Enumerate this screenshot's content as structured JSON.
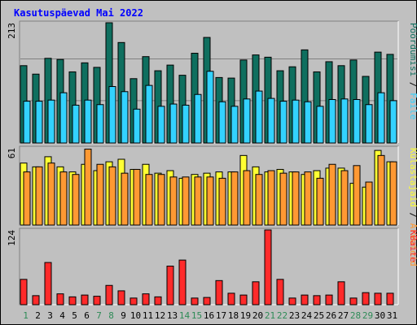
{
  "chart_data": {
    "type": "bar",
    "title": "Kasutuspäevad Mai 2022",
    "colors": {
      "background": "#c0c0c0",
      "plot_bg": "#c0c0c0",
      "grid": "#808080",
      "title": "#0000ff",
      "page_views": "#0f6f5f",
      "files": "#33d2ff",
      "hits": "#ffff33",
      "visits": "#ff9933",
      "kbytes": "#ff2a2a",
      "weekend_tick": "#2e8b57",
      "weekday_tick": "#000000"
    },
    "categories": [
      "1",
      "2",
      "3",
      "4",
      "5",
      "6",
      "7",
      "8",
      "9",
      "10",
      "11",
      "12",
      "13",
      "14",
      "15",
      "16",
      "17",
      "18",
      "19",
      "20",
      "21",
      "22",
      "23",
      "24",
      "25",
      "26",
      "27",
      "28",
      "29",
      "30",
      "31"
    ],
    "weekend_days": [
      "1",
      "7",
      "8",
      "14",
      "15",
      "21",
      "22",
      "28",
      "29"
    ],
    "panels": [
      {
        "name": "top",
        "y_max_label": "213",
        "ymax": 213,
        "side_label": [
          {
            "text": "Pöördumisi",
            "color": "#0f6f5f"
          },
          {
            "text": " / ",
            "color": "#000000"
          },
          {
            "text": "Faile",
            "color": "#33d2ff"
          }
        ],
        "series": [
          {
            "name": "Pöördumisi",
            "color": "#0f6f5f",
            "values": [
              137,
              122,
              150,
              148,
              126,
              142,
              134,
              213,
              178,
              114,
              153,
              128,
              138,
              120,
              159,
              187,
              116,
              115,
              147,
              156,
              152,
              128,
              135,
              165,
              126,
              144,
              137,
              147,
              118,
              161,
              157
            ]
          },
          {
            "name": "Faile",
            "color": "#33d2ff",
            "values": [
              74,
              74,
              76,
              89,
              67,
              76,
              68,
              100,
              91,
              60,
              102,
              65,
              69,
              67,
              86,
              127,
              73,
              65,
              78,
              92,
              79,
              74,
              76,
              73,
              65,
              77,
              78,
              77,
              68,
              89,
              75
            ]
          }
        ]
      },
      {
        "name": "middle",
        "y_max_label": "61",
        "ymax": 61,
        "side_label": [
          {
            "text": "Külastajaid",
            "color": "#ffff33"
          },
          {
            "text": " / ",
            "color": "#000000"
          },
          {
            "text": "Arvuteid",
            "color": "#ff9933"
          }
        ],
        "series": [
          {
            "name": "Külastajaid",
            "color": "#ffff33",
            "values": [
              49,
              46,
              54,
              46,
              42,
              48,
              43,
              50,
              52,
              44,
              48,
              41,
              43,
              37,
              40,
              41,
              42,
              42,
              55,
              46,
              42,
              44,
              42,
              40,
              43,
              45,
              45,
              33,
              30,
              59,
              50
            ]
          },
          {
            "name": "Arvuteid",
            "color": "#ff9933",
            "values": [
              42,
              46,
              49,
              42,
              40,
              60,
              48,
              46,
              41,
              44,
              40,
              40,
              38,
              38,
              38,
              38,
              37,
              42,
              43,
              40,
              43,
              41,
              42,
              42,
              37,
              48,
              43,
              47,
              34,
              55,
              50
            ]
          }
        ]
      },
      {
        "name": "bottom",
        "y_max_label": "124",
        "ymax": 124,
        "side_label": [
          {
            "text": "KBaite",
            "color": "#ff2a2a"
          }
        ],
        "series": [
          {
            "name": "KBaite",
            "color": "#ff2a2a",
            "values": [
              42,
              15,
              70,
              18,
              13,
              16,
              14,
              32,
              23,
              11,
              18,
              13,
              64,
              74,
              11,
              12,
              40,
              19,
              16,
              38,
              124,
              42,
              11,
              16,
              15,
              16,
              38,
              11,
              20,
              19,
              19
            ]
          }
        ]
      }
    ]
  }
}
